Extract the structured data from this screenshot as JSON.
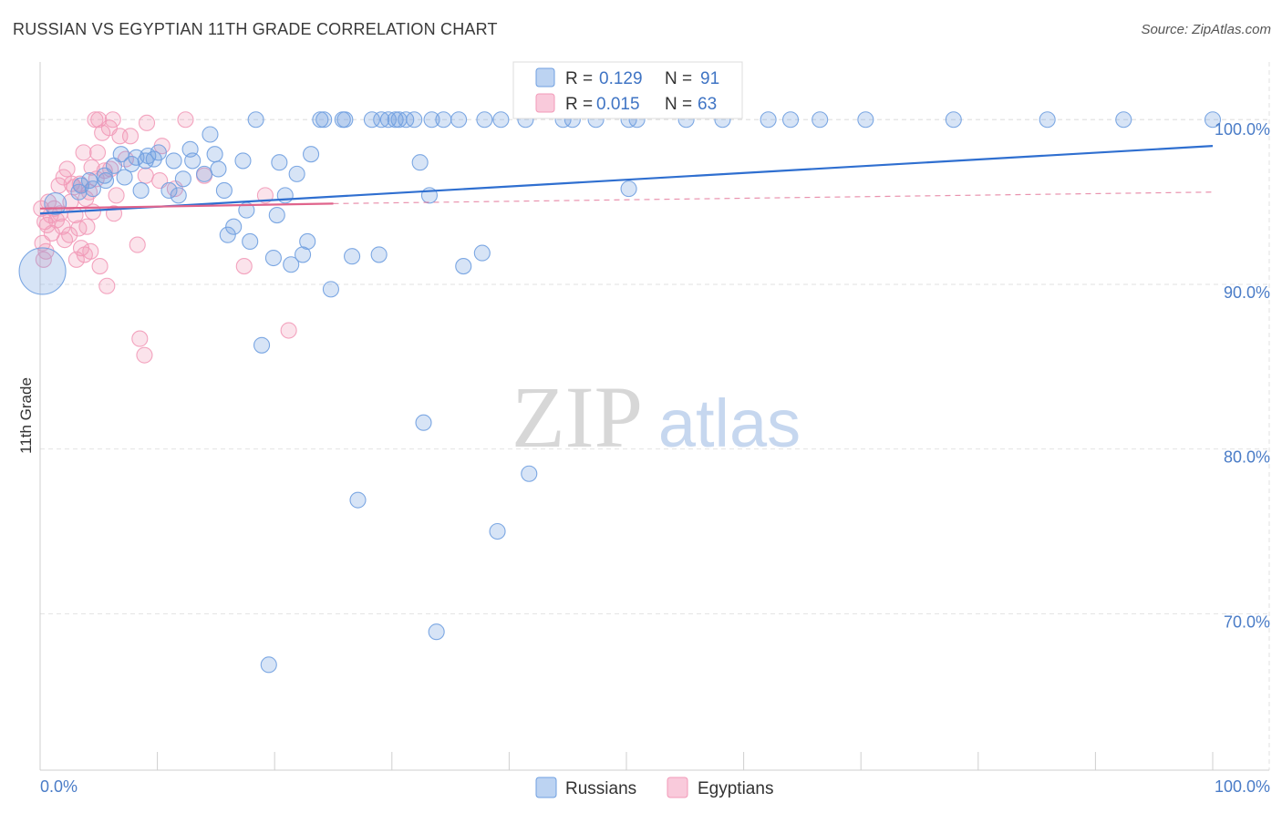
{
  "title": "RUSSIAN VS EGYPTIAN 11TH GRADE CORRELATION CHART",
  "source": "Source: ZipAtlas.com",
  "watermark": {
    "zip": "ZIP",
    "atlas": "atlas"
  },
  "colors": {
    "russians": "#6f9fe0",
    "russians_line": "#2f6fd0",
    "egyptians": "#f29ab8",
    "egyptians_line": "#e0648c",
    "axis_label": "#4a7cc7",
    "grid": "#e2e2e2"
  },
  "legend_top": [
    {
      "series": "russians",
      "r_label": "R = ",
      "r_value": "0.129",
      "n_label": "N = ",
      "n_value": "91"
    },
    {
      "series": "egyptians",
      "r_label": "R = ",
      "r_value": "0.015",
      "n_label": "N = ",
      "n_value": "63"
    }
  ],
  "legend_bottom": [
    {
      "series": "russians",
      "label": "Russians"
    },
    {
      "series": "egyptians",
      "label": "Egyptians"
    }
  ],
  "chart_data": {
    "type": "scatter",
    "title": "RUSSIAN VS EGYPTIAN 11TH GRADE CORRELATION CHART",
    "xlabel": "",
    "ylabel": "11th Grade",
    "xlim": [
      0,
      100
    ],
    "ylim": [
      60.5,
      103.5
    ],
    "x_tick_labels": [
      "0.0%",
      "100.0%"
    ],
    "y_ticks": [
      70,
      80,
      90,
      100
    ],
    "y_tick_labels": [
      "70.0%",
      "80.0%",
      "90.0%",
      "100.0%"
    ],
    "legend_placement": "top-center",
    "series": [
      {
        "name": "Russians",
        "trend": {
          "x": [
            0,
            100
          ],
          "y": [
            94.3,
            98.4
          ],
          "style": "solid"
        },
        "points": [
          [
            0.2,
            90.8,
            3
          ],
          [
            1.3,
            94.9,
            1.4
          ],
          [
            3.5,
            96.0,
            1
          ],
          [
            3.3,
            95.6,
            1
          ],
          [
            4.2,
            96.3,
            1
          ],
          [
            4.5,
            95.8,
            1
          ],
          [
            5.5,
            96.6,
            1
          ],
          [
            5.6,
            96.3,
            1
          ],
          [
            6.3,
            97.2,
            1
          ],
          [
            6.9,
            97.9,
            1
          ],
          [
            7.2,
            96.5,
            1
          ],
          [
            7.8,
            97.3,
            1
          ],
          [
            8.2,
            97.7,
            1
          ],
          [
            8.6,
            95.7,
            1
          ],
          [
            9.0,
            97.5,
            1
          ],
          [
            9.2,
            97.8,
            1
          ],
          [
            9.7,
            97.6,
            1
          ],
          [
            10.1,
            98.0,
            1
          ],
          [
            11.0,
            95.7,
            1
          ],
          [
            11.4,
            97.5,
            1
          ],
          [
            11.8,
            95.4,
            1
          ],
          [
            12.2,
            96.4,
            1
          ],
          [
            12.8,
            98.2,
            1
          ],
          [
            13.0,
            97.5,
            1
          ],
          [
            14.0,
            96.7,
            1
          ],
          [
            14.5,
            99.1,
            1
          ],
          [
            14.9,
            97.9,
            1
          ],
          [
            15.2,
            97.0,
            1
          ],
          [
            15.7,
            95.7,
            1
          ],
          [
            16.0,
            93.0,
            1
          ],
          [
            16.5,
            93.5,
            1
          ],
          [
            17.3,
            97.5,
            1
          ],
          [
            17.6,
            94.5,
            1
          ],
          [
            17.9,
            92.6,
            1
          ],
          [
            18.4,
            100.0,
            1
          ],
          [
            18.9,
            86.3,
            1
          ],
          [
            19.5,
            66.9,
            1
          ],
          [
            19.9,
            91.6,
            1
          ],
          [
            20.2,
            94.2,
            1
          ],
          [
            20.4,
            97.4,
            1
          ],
          [
            20.9,
            95.4,
            1
          ],
          [
            21.4,
            91.2,
            1
          ],
          [
            21.9,
            96.7,
            1
          ],
          [
            22.4,
            91.8,
            1
          ],
          [
            22.8,
            92.6,
            1
          ],
          [
            23.1,
            97.9,
            1
          ],
          [
            23.9,
            100.0,
            1
          ],
          [
            24.2,
            100.0,
            1
          ],
          [
            24.8,
            89.7,
            1
          ],
          [
            25.8,
            100.0,
            1
          ],
          [
            26.0,
            100.0,
            1
          ],
          [
            26.6,
            91.7,
            1
          ],
          [
            27.1,
            76.9,
            1
          ],
          [
            28.3,
            100.0,
            1
          ],
          [
            28.9,
            91.8,
            1
          ],
          [
            29.1,
            100.0,
            1
          ],
          [
            29.7,
            100.0,
            1
          ],
          [
            30.3,
            100.0,
            1
          ],
          [
            30.6,
            100.0,
            1
          ],
          [
            31.2,
            100.0,
            1
          ],
          [
            31.9,
            100.0,
            1
          ],
          [
            32.4,
            97.4,
            1
          ],
          [
            32.7,
            81.6,
            1
          ],
          [
            33.2,
            95.4,
            1
          ],
          [
            33.4,
            100.0,
            1
          ],
          [
            33.8,
            68.9,
            1
          ],
          [
            34.4,
            100.0,
            1
          ],
          [
            35.7,
            100.0,
            1
          ],
          [
            36.1,
            91.1,
            1
          ],
          [
            37.7,
            91.9,
            1
          ],
          [
            37.9,
            100.0,
            1
          ],
          [
            39.0,
            75.0,
            1
          ],
          [
            39.3,
            100.0,
            1
          ],
          [
            41.4,
            100.0,
            1
          ],
          [
            41.7,
            78.5,
            1
          ],
          [
            44.6,
            100.0,
            1
          ],
          [
            45.4,
            100.0,
            1
          ],
          [
            47.4,
            100.0,
            1
          ],
          [
            50.2,
            100.0,
            1
          ],
          [
            50.9,
            100.0,
            1
          ],
          [
            55.1,
            100.0,
            1
          ],
          [
            58.2,
            100.0,
            1
          ],
          [
            62.1,
            100.0,
            1
          ],
          [
            64.0,
            100.0,
            1
          ],
          [
            66.5,
            100.0,
            1
          ],
          [
            70.4,
            100.0,
            1
          ],
          [
            77.9,
            100.0,
            1
          ],
          [
            85.9,
            100.0,
            1
          ],
          [
            92.4,
            100.0,
            1
          ],
          [
            100.0,
            100.0,
            1
          ],
          [
            50.2,
            95.8,
            1
          ]
        ]
      },
      {
        "name": "Egyptians",
        "trend": {
          "x": [
            0,
            25,
            100
          ],
          "y": [
            94.6,
            94.9,
            95.6
          ],
          "style": "solid-then-dashed"
        },
        "points": [
          [
            0.1,
            94.6,
            1
          ],
          [
            0.2,
            92.5,
            1
          ],
          [
            0.3,
            91.5,
            1
          ],
          [
            0.4,
            93.8,
            1
          ],
          [
            0.5,
            92.0,
            1
          ],
          [
            0.6,
            93.6,
            1
          ],
          [
            0.7,
            95.0,
            1
          ],
          [
            0.9,
            94.2,
            1
          ],
          [
            1.0,
            93.1,
            1
          ],
          [
            1.2,
            94.6,
            1
          ],
          [
            1.4,
            93.9,
            1
          ],
          [
            1.6,
            96.0,
            1
          ],
          [
            1.7,
            94.3,
            1
          ],
          [
            1.9,
            93.5,
            1
          ],
          [
            2.0,
            96.5,
            1
          ],
          [
            2.1,
            92.7,
            1
          ],
          [
            2.3,
            97.0,
            1
          ],
          [
            2.5,
            93.0,
            1
          ],
          [
            2.6,
            95.0,
            1
          ],
          [
            2.7,
            96.1,
            1
          ],
          [
            2.9,
            95.9,
            1
          ],
          [
            3.0,
            94.2,
            1
          ],
          [
            3.1,
            91.5,
            1
          ],
          [
            3.3,
            93.4,
            1
          ],
          [
            3.4,
            96.1,
            1
          ],
          [
            3.5,
            92.2,
            1
          ],
          [
            3.7,
            98.0,
            1
          ],
          [
            3.8,
            91.8,
            1
          ],
          [
            3.9,
            95.2,
            1
          ],
          [
            4.0,
            93.5,
            1
          ],
          [
            4.2,
            95.6,
            1
          ],
          [
            4.3,
            92.0,
            1
          ],
          [
            4.4,
            97.1,
            1
          ],
          [
            4.5,
            94.4,
            1
          ],
          [
            4.7,
            100.0,
            1
          ],
          [
            4.8,
            96.4,
            1
          ],
          [
            4.9,
            98.0,
            1
          ],
          [
            5.0,
            100.0,
            1
          ],
          [
            5.1,
            91.1,
            1
          ],
          [
            5.3,
            99.2,
            1
          ],
          [
            5.5,
            96.9,
            1
          ],
          [
            5.7,
            89.9,
            1
          ],
          [
            5.9,
            99.5,
            1
          ],
          [
            6.0,
            97.0,
            1
          ],
          [
            6.2,
            100.0,
            1
          ],
          [
            6.3,
            94.3,
            1
          ],
          [
            6.5,
            95.4,
            1
          ],
          [
            6.8,
            99.0,
            1
          ],
          [
            7.3,
            97.6,
            1
          ],
          [
            7.7,
            99.0,
            1
          ],
          [
            8.3,
            92.4,
            1
          ],
          [
            8.5,
            86.7,
            1
          ],
          [
            8.9,
            85.7,
            1
          ],
          [
            9.0,
            96.6,
            1
          ],
          [
            9.1,
            99.8,
            1
          ],
          [
            10.2,
            96.3,
            1
          ],
          [
            10.4,
            98.4,
            1
          ],
          [
            11.5,
            95.8,
            1
          ],
          [
            12.4,
            100.0,
            1
          ],
          [
            14.0,
            96.6,
            1
          ],
          [
            17.4,
            91.1,
            1
          ],
          [
            19.2,
            95.4,
            1
          ],
          [
            21.2,
            87.2,
            1
          ]
        ]
      }
    ]
  }
}
